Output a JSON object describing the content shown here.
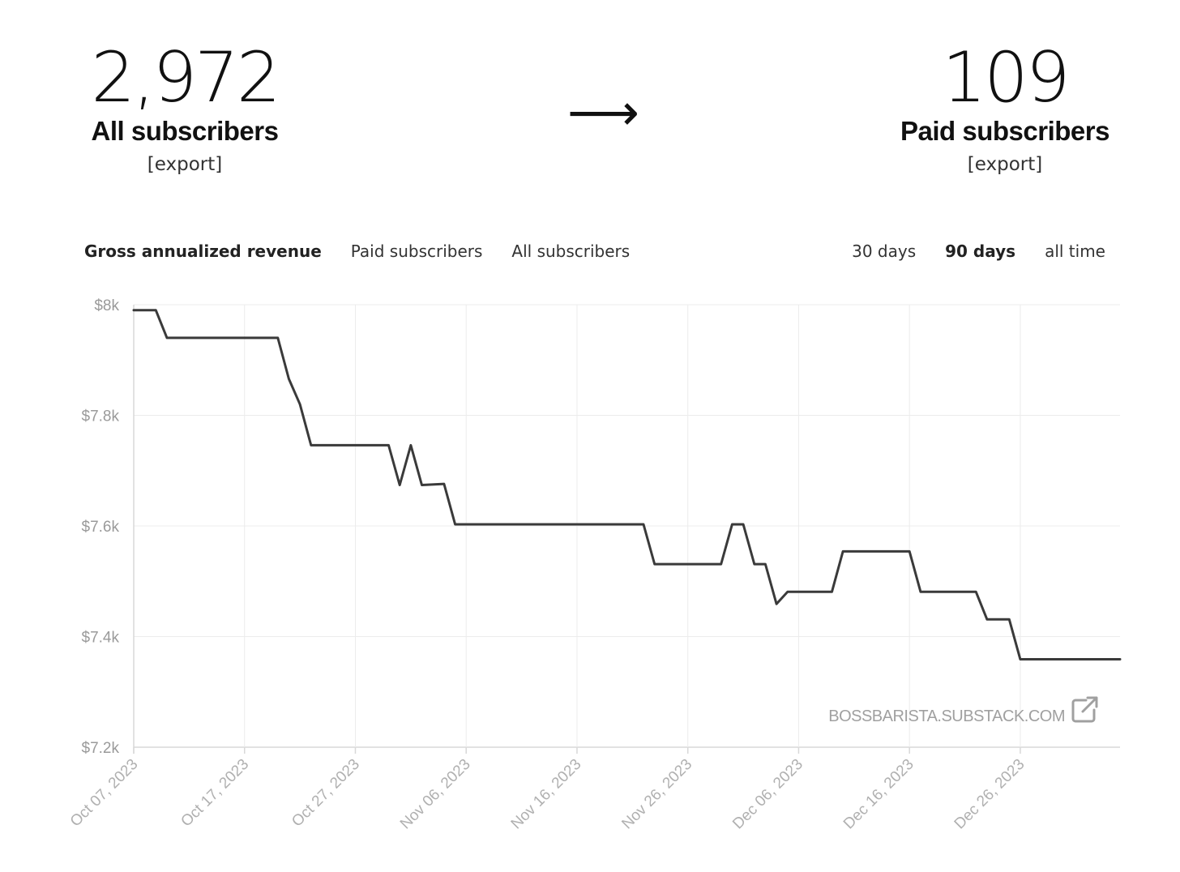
{
  "stats": {
    "all": {
      "value": "2,972",
      "label": "All subscribers",
      "export": "[export]"
    },
    "arrow": "⟶",
    "paid": {
      "value": "109",
      "label": "Paid subscribers",
      "export": "[export]"
    }
  },
  "tabs": {
    "metrics": [
      {
        "label": "Gross annualized revenue",
        "active": true
      },
      {
        "label": "Paid subscribers",
        "active": false
      },
      {
        "label": "All subscribers",
        "active": false
      }
    ],
    "ranges": [
      {
        "label": "30 days",
        "active": false
      },
      {
        "label": "90 days",
        "active": true
      },
      {
        "label": "all time",
        "active": false
      }
    ]
  },
  "watermark": {
    "text": "BOSSBARISTA.SUBSTACK.COM",
    "icon": "external-link-icon"
  },
  "colors": {
    "line": "#3a3a3a",
    "grid": "#ececec",
    "axis": "#d8d8d8"
  },
  "chart_data": {
    "type": "line",
    "title": "",
    "xlabel": "",
    "ylabel": "",
    "ylim": [
      7200,
      8000
    ],
    "xlim": [
      "2023-10-07",
      "2024-01-04"
    ],
    "yticks": [
      {
        "value": 8000,
        "label": "$8k"
      },
      {
        "value": 7800,
        "label": "$7.8k"
      },
      {
        "value": 7600,
        "label": "$7.6k"
      },
      {
        "value": 7400,
        "label": "$7.4k"
      },
      {
        "value": 7200,
        "label": "$7.2k"
      }
    ],
    "xticks": [
      {
        "date": "2023-10-07",
        "label": "Oct 07, 2023"
      },
      {
        "date": "2023-10-17",
        "label": "Oct 17, 2023"
      },
      {
        "date": "2023-10-27",
        "label": "Oct 27, 2023"
      },
      {
        "date": "2023-11-06",
        "label": "Nov 06, 2023"
      },
      {
        "date": "2023-11-16",
        "label": "Nov 16, 2023"
      },
      {
        "date": "2023-11-26",
        "label": "Nov 26, 2023"
      },
      {
        "date": "2023-12-06",
        "label": "Dec 06, 2023"
      },
      {
        "date": "2023-12-16",
        "label": "Dec 16, 2023"
      },
      {
        "date": "2023-12-26",
        "label": "Dec 26, 2023"
      }
    ],
    "grid": true,
    "series": [
      {
        "points": [
          [
            "2023-10-07",
            7990
          ],
          [
            "2023-10-09",
            7990
          ],
          [
            "2023-10-10",
            7940
          ],
          [
            "2023-10-20",
            7940
          ],
          [
            "2023-10-21",
            7866
          ],
          [
            "2023-10-22",
            7820
          ],
          [
            "2023-10-23",
            7746
          ],
          [
            "2023-10-30",
            7746
          ],
          [
            "2023-10-31",
            7674
          ],
          [
            "2023-11-01",
            7746
          ],
          [
            "2023-11-02",
            7674
          ],
          [
            "2023-11-04",
            7676
          ],
          [
            "2023-11-05",
            7603
          ],
          [
            "2023-11-22",
            7603
          ],
          [
            "2023-11-23",
            7531
          ],
          [
            "2023-11-29",
            7531
          ],
          [
            "2023-11-30",
            7603
          ],
          [
            "2023-12-01",
            7603
          ],
          [
            "2023-12-02",
            7531
          ],
          [
            "2023-12-03",
            7531
          ],
          [
            "2023-12-04",
            7459
          ],
          [
            "2023-12-05",
            7481
          ],
          [
            "2023-12-09",
            7481
          ],
          [
            "2023-12-10",
            7554
          ],
          [
            "2023-12-16",
            7554
          ],
          [
            "2023-12-17",
            7481
          ],
          [
            "2023-12-22",
            7481
          ],
          [
            "2023-12-23",
            7431
          ],
          [
            "2023-12-25",
            7431
          ],
          [
            "2023-12-26",
            7359
          ],
          [
            "2024-01-04",
            7359
          ]
        ]
      }
    ]
  }
}
